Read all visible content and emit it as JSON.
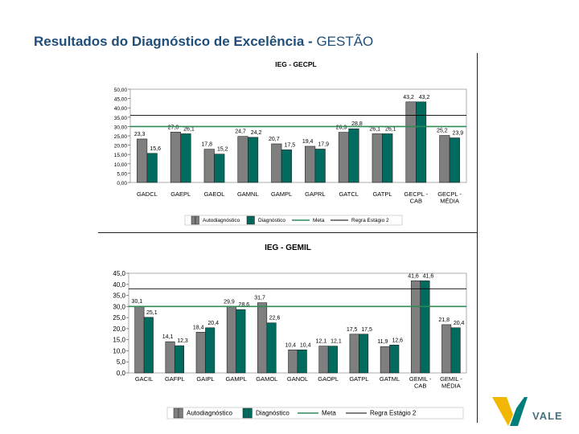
{
  "slide": {
    "title_bold": "Resultados do Diagnóstico de Excelência -",
    "title_light": "GESTÃO",
    "logo_text": "VALE"
  },
  "colors": {
    "auto": "#7f7f7f",
    "diag": "#006b5e",
    "meta": "#2e8b57",
    "regra": "#000000"
  },
  "chart_data": [
    {
      "type": "bar",
      "title": "IEG - GECPL",
      "categories": [
        "GADCL",
        "GAEPL",
        "GAEOL",
        "GAMNL",
        "GAMPL",
        "GAPRL",
        "GATCL",
        "GATPL",
        "GECPL - CAB",
        "GECPL - MÉDIA"
      ],
      "series": [
        {
          "name": "Autodiagnóstico",
          "values": [
            23.3,
            27.0,
            17.8,
            24.7,
            20.7,
            19.4,
            26.9,
            26.1,
            43.2,
            25.2
          ]
        },
        {
          "name": "Diagnóstico",
          "values": [
            15.6,
            26.1,
            15.2,
            24.2,
            17.5,
            17.9,
            28.8,
            26.1,
            43.2,
            23.9
          ]
        }
      ],
      "value_labels": [
        [
          "23,3",
          "27,0",
          "17,8",
          "24,7",
          "20,7",
          "19,4",
          "26,9",
          "26,1",
          "43,2",
          "25,2"
        ],
        [
          "15,6",
          "26,1",
          "15,2",
          "24,2",
          "17,5",
          "17,9",
          "28,8",
          "26,1",
          "43,2",
          "23,9"
        ]
      ],
      "lines": [
        {
          "name": "Meta",
          "value": 30
        },
        {
          "name": "Regra Estágio 2",
          "value": 36
        }
      ],
      "ylim": [
        0,
        50
      ],
      "yticks": [
        "0,00",
        "5,00",
        "10,00",
        "15,00",
        "20,00",
        "25,00",
        "30,00",
        "35,00",
        "40,00",
        "45,00",
        "50,00"
      ],
      "legend": [
        "Autodiagnóstico",
        "Diagnóstico",
        "Meta",
        "Regra Estágio 2"
      ],
      "legend_position": "bottom"
    },
    {
      "type": "bar",
      "title": "IEG - GEMIL",
      "categories": [
        "GACIL",
        "GAFPL",
        "GAIPL",
        "GAMPL",
        "GAMOL",
        "GANOL",
        "GAOPL",
        "GATPL",
        "GATML",
        "GEMIL - CAB",
        "GEMIL - MÉDIA"
      ],
      "series": [
        {
          "name": "Autodiagnóstico",
          "values": [
            30.1,
            14.1,
            18.4,
            29.9,
            31.7,
            10.4,
            12.1,
            17.5,
            11.9,
            41.6,
            21.8
          ]
        },
        {
          "name": "Diagnóstico",
          "values": [
            25.1,
            12.3,
            20.4,
            28.6,
            22.6,
            10.4,
            12.1,
            17.5,
            12.6,
            41.6,
            20.4
          ]
        }
      ],
      "value_labels": [
        [
          "30,1",
          "14,1",
          "18,4",
          "29,9",
          "31,7",
          "10,4",
          "12,1",
          "17,5",
          "11,9",
          "41,6",
          "21,8"
        ],
        [
          "25,1",
          "12,3",
          "20,4",
          "28,6",
          "22,6",
          "10,4",
          "12,1",
          "17,5",
          "12,6",
          "41,6",
          "20,4"
        ]
      ],
      "lines": [
        {
          "name": "Meta",
          "value": 30
        },
        {
          "name": "Regra Estágio 2",
          "value": 38
        }
      ],
      "ylim": [
        0,
        45
      ],
      "yticks": [
        "0,0",
        "5,0",
        "10,0",
        "15,0",
        "20,0",
        "25,0",
        "30,0",
        "35,0",
        "40,0",
        "45,0"
      ],
      "legend": [
        "Autodiagnóstico",
        "Diagnóstico",
        "Meta",
        "Regra Estágio 2"
      ],
      "legend_position": "bottom"
    }
  ]
}
